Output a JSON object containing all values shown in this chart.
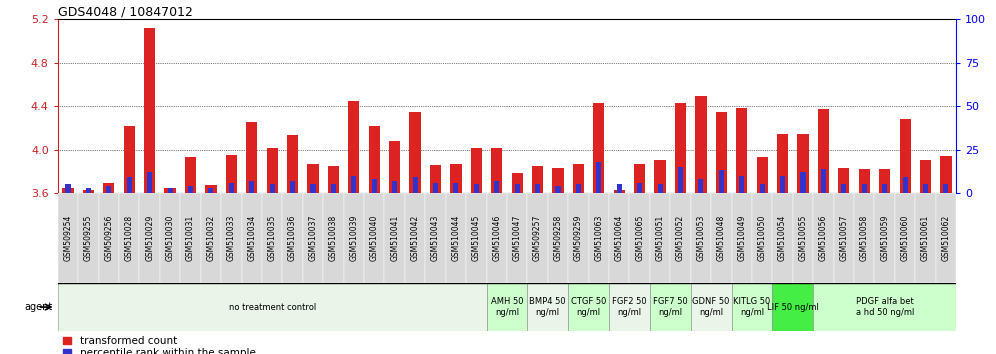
{
  "title": "GDS4048 / 10847012",
  "samples": [
    "GSM509254",
    "GSM509255",
    "GSM509256",
    "GSM510028",
    "GSM510029",
    "GSM510030",
    "GSM510031",
    "GSM510032",
    "GSM510033",
    "GSM510034",
    "GSM510035",
    "GSM510036",
    "GSM510037",
    "GSM510038",
    "GSM510039",
    "GSM510040",
    "GSM510041",
    "GSM510042",
    "GSM510043",
    "GSM510044",
    "GSM510045",
    "GSM510046",
    "GSM510047",
    "GSM509257",
    "GSM509258",
    "GSM509259",
    "GSM510063",
    "GSM510064",
    "GSM510065",
    "GSM510051",
    "GSM510052",
    "GSM510053",
    "GSM510048",
    "GSM510049",
    "GSM510050",
    "GSM510054",
    "GSM510055",
    "GSM510056",
    "GSM510057",
    "GSM510058",
    "GSM510059",
    "GSM510060",
    "GSM510061",
    "GSM510062"
  ],
  "transformed_counts": [
    3.65,
    3.63,
    3.69,
    4.22,
    5.12,
    3.65,
    3.93,
    3.67,
    3.95,
    4.25,
    4.01,
    4.13,
    3.87,
    3.85,
    4.45,
    4.22,
    4.08,
    4.35,
    3.86,
    3.87,
    4.01,
    4.01,
    3.78,
    3.85,
    3.83,
    3.87,
    4.43,
    3.63,
    3.87,
    3.9,
    4.43,
    4.49,
    4.35,
    4.38,
    3.93,
    4.14,
    4.14,
    4.37,
    3.83,
    3.82,
    3.82,
    4.28,
    3.9,
    3.94
  ],
  "percentile_ranks": [
    5,
    3,
    4,
    9,
    12,
    3,
    4,
    3,
    6,
    7,
    5,
    7,
    5,
    5,
    10,
    8,
    7,
    9,
    6,
    6,
    5,
    7,
    5,
    5,
    4,
    5,
    18,
    5,
    6,
    5,
    15,
    8,
    13,
    10,
    5,
    10,
    12,
    14,
    5,
    5,
    5,
    9,
    5,
    5
  ],
  "ymin": 3.6,
  "ymax": 5.2,
  "yticks": [
    3.6,
    4.0,
    4.4,
    4.8,
    5.2
  ],
  "y2ticks": [
    0,
    25,
    50,
    75,
    100
  ],
  "bar_color_red": "#dd2222",
  "bar_color_blue": "#3333cc",
  "agent_groups": [
    {
      "label": "no treatment control",
      "start": 0,
      "end": 21,
      "color": "#e8f5e8"
    },
    {
      "label": "AMH 50\nng/ml",
      "start": 21,
      "end": 23,
      "color": "#ccffcc"
    },
    {
      "label": "BMP4 50\nng/ml",
      "start": 23,
      "end": 25,
      "color": "#e8f5e8"
    },
    {
      "label": "CTGF 50\nng/ml",
      "start": 25,
      "end": 27,
      "color": "#ccffcc"
    },
    {
      "label": "FGF2 50\nng/ml",
      "start": 27,
      "end": 29,
      "color": "#e8f5e8"
    },
    {
      "label": "FGF7 50\nng/ml",
      "start": 29,
      "end": 31,
      "color": "#ccffcc"
    },
    {
      "label": "GDNF 50\nng/ml",
      "start": 31,
      "end": 33,
      "color": "#e8f5e8"
    },
    {
      "label": "KITLG 50\nng/ml",
      "start": 33,
      "end": 35,
      "color": "#ccffcc"
    },
    {
      "label": "LIF 50 ng/ml",
      "start": 35,
      "end": 37,
      "color": "#44ee44"
    },
    {
      "label": "PDGF alfa bet\na hd 50 ng/ml",
      "start": 37,
      "end": 44,
      "color": "#ccffcc"
    }
  ],
  "title_fontsize": 9,
  "tick_label_fontsize": 5.5,
  "agent_label_fontsize": 6.0,
  "legend_fontsize": 7.5
}
